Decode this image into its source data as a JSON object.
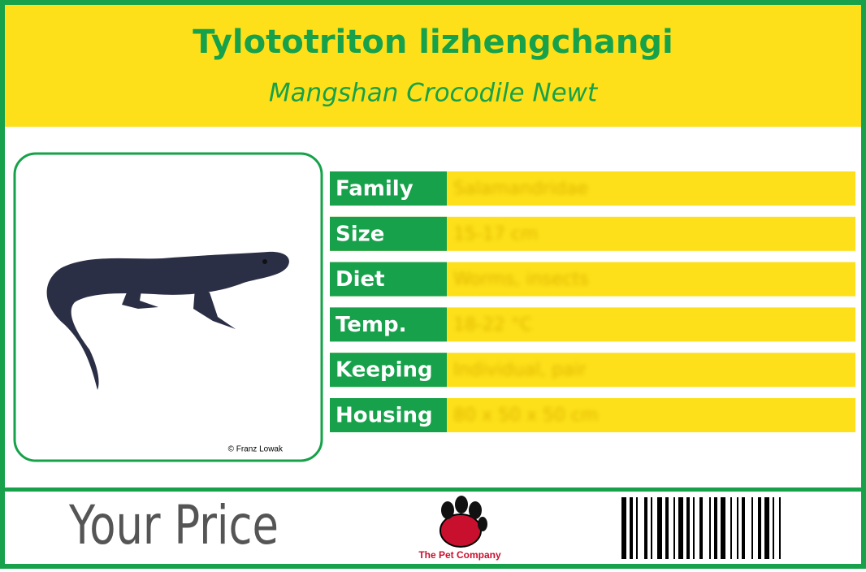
{
  "header": {
    "title": "Tylototriton lizhengchangi",
    "subtitle": "Mangshan Crocodile Newt"
  },
  "image": {
    "credit": "© Franz Lowak"
  },
  "table": {
    "rows": [
      [
        "Family",
        "Salamandridae"
      ],
      [
        "Size",
        "15-17 cm"
      ],
      [
        "Diet",
        "Worms, insects"
      ],
      [
        "Temp.",
        "18-22 °C"
      ],
      [
        "Keeping",
        "Individual, pair"
      ],
      [
        "Housing",
        "80 x 50 x 50 cm"
      ]
    ]
  },
  "footer": {
    "price_label": "Your Price",
    "brand": "The Pet Company"
  }
}
